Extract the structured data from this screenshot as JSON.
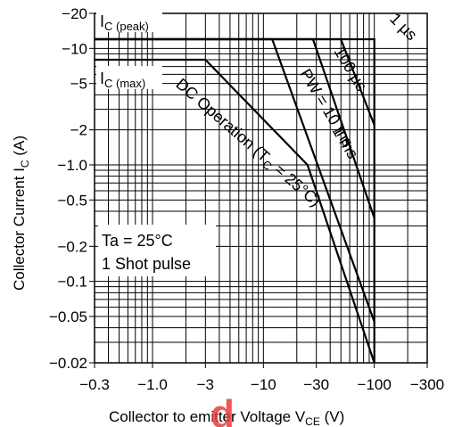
{
  "chart_data": {
    "type": "line",
    "title": "",
    "xlabel_main": "Collector to emitter Voltage  V",
    "xlabel_sub": "CE",
    "xlabel_unit": "  (V)",
    "ylabel_main": "Collector Current  I",
    "ylabel_sub": "C",
    "ylabel_unit": "  (A)",
    "x_scale": "log",
    "y_scale": "log",
    "x_ticks": [
      {
        "value": 0.3,
        "label": "−0.3"
      },
      {
        "value": 1,
        "label": "−1.0"
      },
      {
        "value": 3,
        "label": "−3"
      },
      {
        "value": 10,
        "label": "−10"
      },
      {
        "value": 30,
        "label": "−30"
      },
      {
        "value": 100,
        "label": "−100"
      },
      {
        "value": 300,
        "label": "−300"
      }
    ],
    "y_ticks": [
      {
        "value": 20,
        "label": "−20"
      },
      {
        "value": 10,
        "label": "−10"
      },
      {
        "value": 5,
        "label": "−5"
      },
      {
        "value": 2,
        "label": "−2"
      },
      {
        "value": 1,
        "label": "−1.0"
      },
      {
        "value": 0.5,
        "label": "−0.5"
      },
      {
        "value": 0.2,
        "label": "−0.2"
      },
      {
        "value": 0.1,
        "label": "−0.1"
      },
      {
        "value": 0.05,
        "label": "−0.05"
      },
      {
        "value": 0.02,
        "label": "−0.02"
      }
    ],
    "xlim": [
      0.3,
      300
    ],
    "ylim": [
      0.02,
      20
    ],
    "grid": true,
    "series": [
      {
        "name": "DC Operation (TC = 25°C)",
        "points": [
          [
            0.3,
            8
          ],
          [
            3,
            8
          ],
          [
            25,
            1
          ],
          [
            100,
            0.02
          ]
        ]
      },
      {
        "name": "PW = 10 ms",
        "points": [
          [
            0.3,
            12
          ],
          [
            12,
            12
          ],
          [
            100,
            0.045
          ]
        ]
      },
      {
        "name": "1 ms",
        "points": [
          [
            0.3,
            12
          ],
          [
            28,
            12
          ],
          [
            100,
            0.35
          ]
        ]
      },
      {
        "name": "100 µs",
        "points": [
          [
            0.3,
            12
          ],
          [
            50,
            12
          ],
          [
            100,
            2.2
          ]
        ]
      },
      {
        "name": "1 µs",
        "points": [
          [
            0.3,
            12
          ],
          [
            100,
            12
          ],
          [
            100,
            0.02
          ]
        ]
      }
    ],
    "annotations": {
      "ic_peak": {
        "main": "I",
        "sub": "C (peak)"
      },
      "ic_max": {
        "main": "I",
        "sub": "C (max)"
      },
      "dc_label": {
        "main": "DC Operation (T",
        "sub": "C",
        "tail": " = 25°C)"
      },
      "pw_label": "PW = 10 ms",
      "ms1_label": "1 ms",
      "us100_label": "100 µs",
      "us1_label": "1 µs",
      "condition_line1": "Ta = 25°C",
      "condition_line2": "1 Shot pulse"
    }
  },
  "watermark": {
    "text": "d",
    "color": "#ee3b3b"
  }
}
